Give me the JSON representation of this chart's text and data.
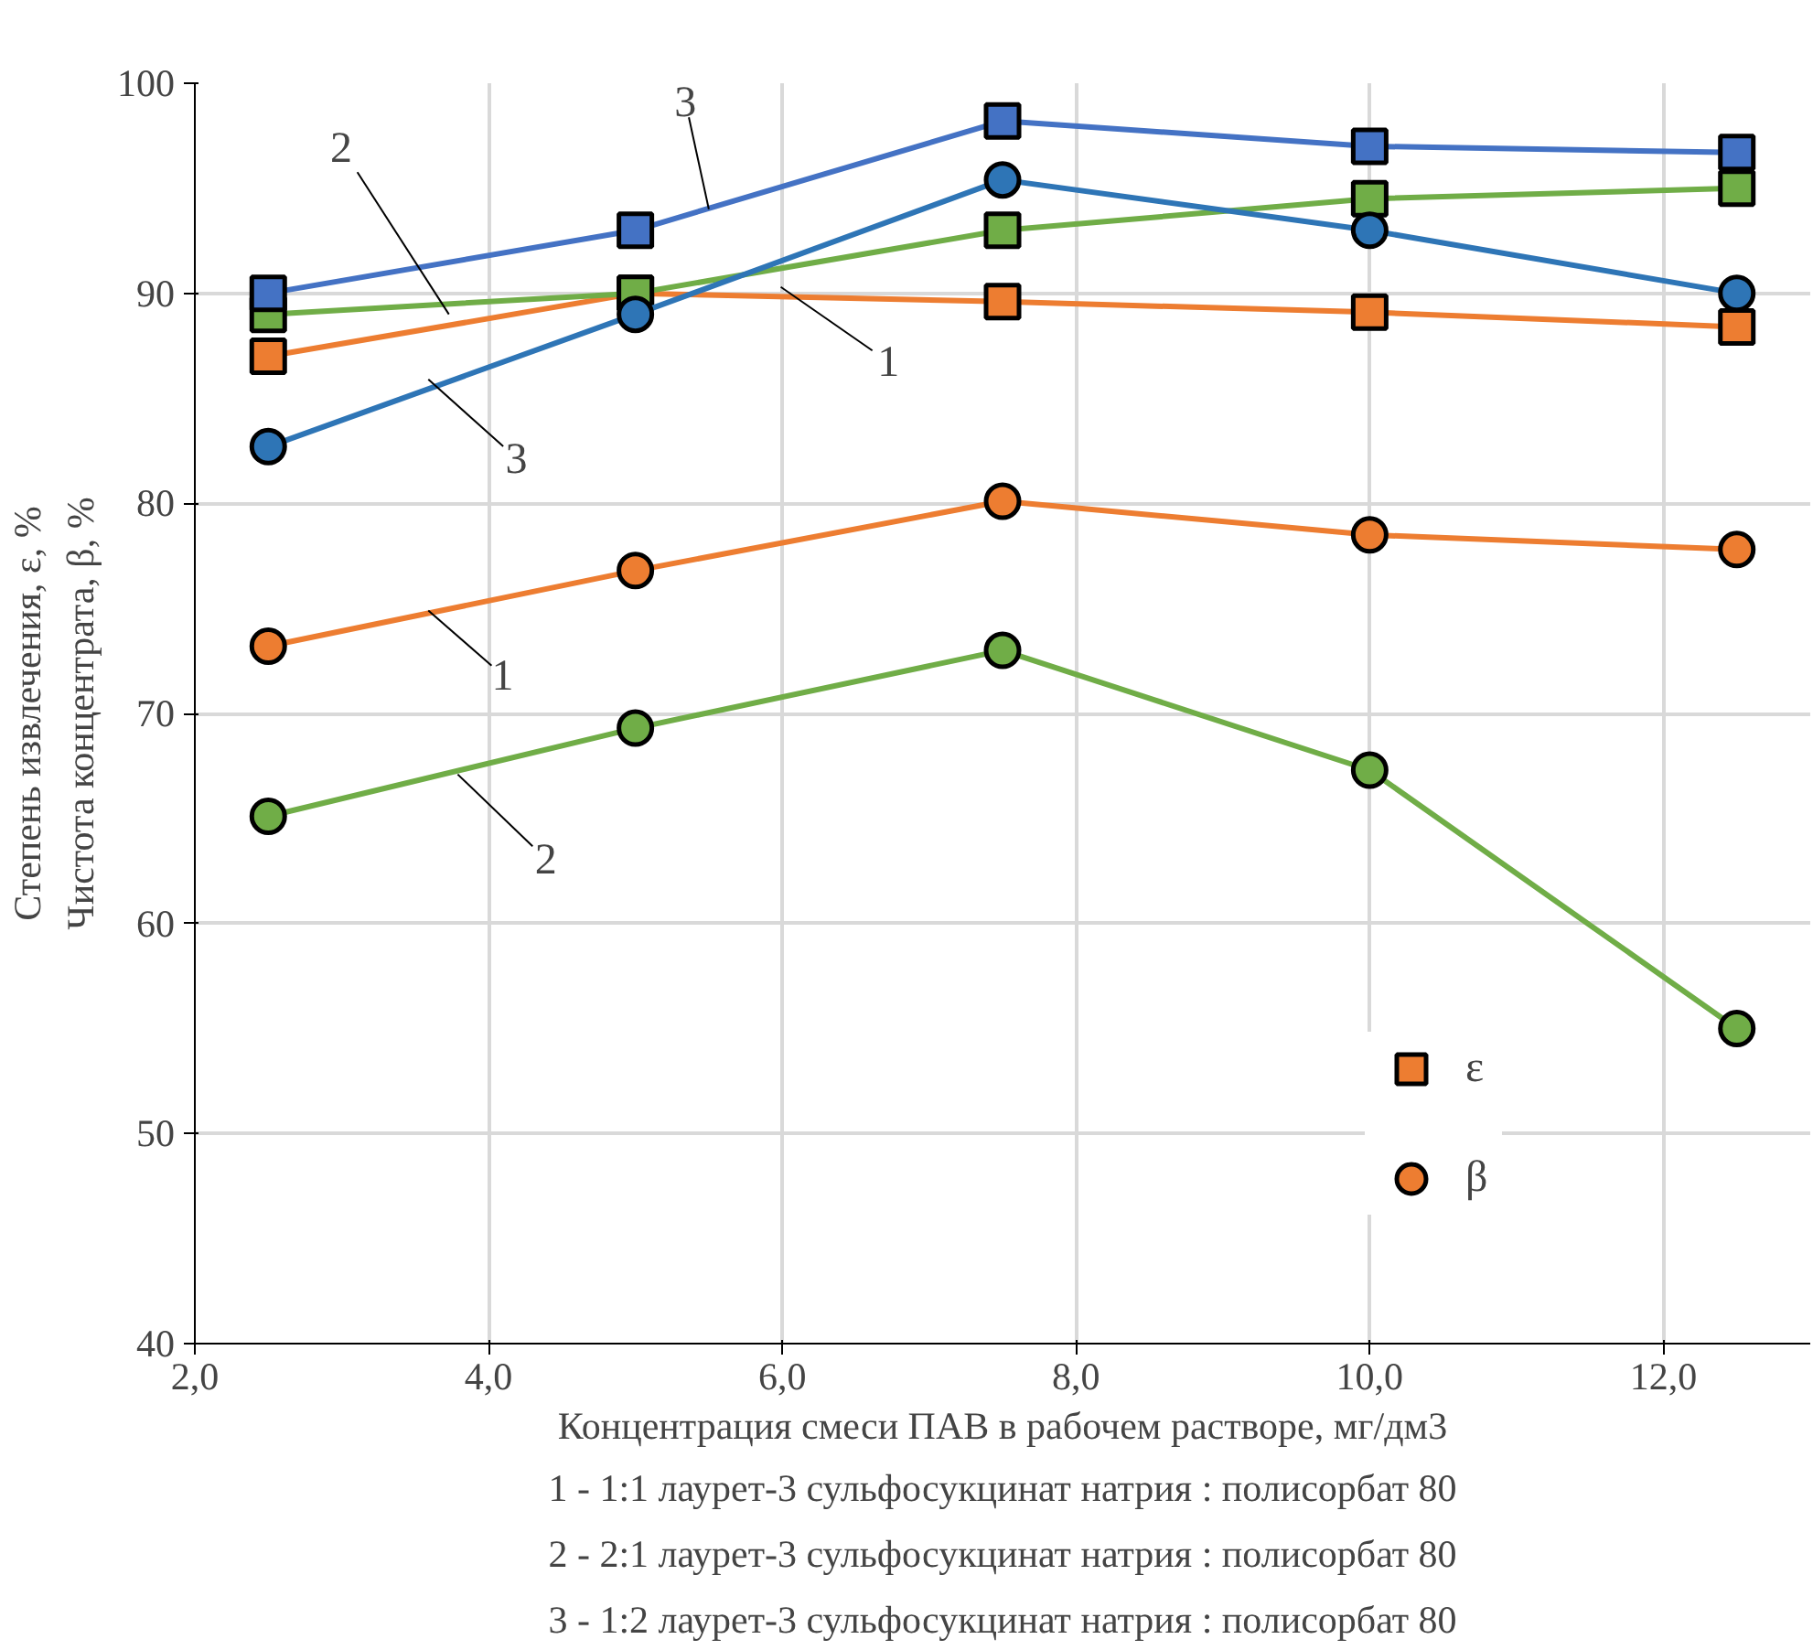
{
  "chart_data": {
    "type": "line",
    "xlabel": "Концентрация смеси ПАВ в рабочем растворе, мг/дм3",
    "ylabel": "Степень извлечения, ε, %\nЧистота концентрата, β, %",
    "x": [
      2.5,
      5.0,
      7.5,
      10.0,
      12.5
    ],
    "series": [
      {
        "name": "ε",
        "color": "#ed7d31",
        "marker": "square",
        "values": [
          87,
          90,
          89.6,
          89.1,
          88.4
        ]
      },
      {
        "color": "#70ad47",
        "marker": "square",
        "values": [
          89,
          90,
          93,
          94.5,
          95
        ]
      },
      {
        "color": "#4472c4",
        "marker": "square",
        "values": [
          90,
          93,
          98.2,
          97,
          96.7
        ]
      },
      {
        "name": "β",
        "color": "#ed7d31",
        "marker": "circle",
        "values": [
          73.2,
          76.8,
          80.1,
          78.5,
          77.8
        ]
      },
      {
        "color": "#70ad47",
        "marker": "circle",
        "values": [
          65.1,
          69.3,
          73,
          67.3,
          55
        ]
      },
      {
        "color": "#2e75b6",
        "marker": "circle",
        "values": [
          82.7,
          89,
          95.4,
          93,
          90
        ]
      }
    ],
    "xlim": [
      2,
      13
    ],
    "ylim": [
      40,
      100
    ],
    "xticks": [
      {
        "value": 2,
        "label": "2,0"
      },
      {
        "value": 4,
        "label": "4,0"
      },
      {
        "value": 6,
        "label": "6,0"
      },
      {
        "value": 8,
        "label": "8,0"
      },
      {
        "value": 10,
        "label": "10,0"
      },
      {
        "value": 12,
        "label": "12,0"
      }
    ],
    "yticks": [
      40,
      50,
      60,
      70,
      80,
      90,
      100
    ],
    "grid": true,
    "legend": "right",
    "annotations": [
      {
        "text": "3",
        "x": 5.5,
        "y": 94.0
      },
      {
        "text": "2",
        "x": 3.73,
        "y": 89.0
      },
      {
        "text": "1",
        "x": 5.99,
        "y": 90.3
      },
      {
        "text": "3",
        "x": 3.59,
        "y": 85.9
      },
      {
        "text": "1",
        "x": 3.59,
        "y": 74.9
      },
      {
        "text": "2",
        "x": 3.79,
        "y": 67.1
      },
      "1 - 1:1 лаурет-3 сульфосукцинат натрия : полисорбат 80",
      "2 - 2:1 лаурет-3 сульфосукцинат натрия : полисорбат 80",
      "3 - 1:2 лаурет-3 сульфосукцинат натрия : полисорбат 80"
    ]
  }
}
